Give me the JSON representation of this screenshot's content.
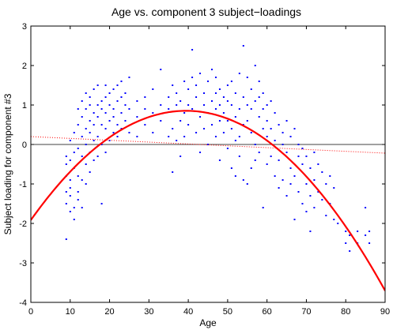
{
  "chart_data": {
    "type": "scatter",
    "title": "Age vs. component 3 subject−loadings",
    "xlabel": "Age",
    "ylabel": "Subject loading for component #3",
    "xlim": [
      0,
      90
    ],
    "ylim": [
      -4,
      3
    ],
    "xticks": [
      "0",
      "10",
      "20",
      "30",
      "40",
      "50",
      "60",
      "70",
      "80",
      "90"
    ],
    "yticks": [
      "-4",
      "-3",
      "-2",
      "-1",
      "0",
      "1",
      "2",
      "3"
    ],
    "grid": false,
    "legend": "none",
    "colors": {
      "points": "#0000ff",
      "quadratic_fit": "#ff0000",
      "linear_fit": "#ff0000",
      "zero_line": "#000000"
    },
    "zero_line": 0,
    "quadratic_fit": {
      "x": [
        0,
        10,
        20,
        30,
        40,
        50,
        60,
        70,
        80,
        90
      ],
      "y": [
        -2.0,
        -0.7,
        0.25,
        0.8,
        0.93,
        0.65,
        0.0,
        -0.95,
        -2.15,
        -3.55
      ]
    },
    "linear_fit": {
      "x": [
        0,
        90
      ],
      "y": [
        0.2,
        -0.22
      ]
    },
    "points": [
      [
        9,
        -2.4
      ],
      [
        9,
        -1.2
      ],
      [
        9,
        -0.8
      ],
      [
        9,
        -0.5
      ],
      [
        9,
        -0.3
      ],
      [
        9,
        -1.5
      ],
      [
        10,
        -0.9
      ],
      [
        10,
        -1.3
      ],
      [
        10,
        -1.7
      ],
      [
        10,
        -0.4
      ],
      [
        10,
        0.1
      ],
      [
        10,
        -1.1
      ],
      [
        11,
        -0.6
      ],
      [
        11,
        -1.6
      ],
      [
        11,
        -0.2
      ],
      [
        11,
        -1.9
      ],
      [
        11,
        0.3
      ],
      [
        12,
        -0.1
      ],
      [
        12,
        -1.4
      ],
      [
        12,
        0.9
      ],
      [
        12,
        -0.8
      ],
      [
        12,
        -1.2
      ],
      [
        12,
        0.5
      ],
      [
        13,
        0.2
      ],
      [
        13,
        -0.9
      ],
      [
        13,
        1.1
      ],
      [
        13,
        -0.3
      ],
      [
        13,
        -1.6
      ],
      [
        13,
        0.7
      ],
      [
        14,
        0.4
      ],
      [
        14,
        -0.5
      ],
      [
        14,
        1.3
      ],
      [
        14,
        0.0
      ],
      [
        14,
        -1.0
      ],
      [
        14,
        0.9
      ],
      [
        15,
        0.6
      ],
      [
        15,
        -0.2
      ],
      [
        15,
        1.2
      ],
      [
        15,
        0.3
      ],
      [
        15,
        -0.7
      ],
      [
        15,
        1.0
      ],
      [
        16,
        0.8
      ],
      [
        16,
        0.1
      ],
      [
        16,
        -0.4
      ],
      [
        16,
        1.4
      ],
      [
        16,
        0.5
      ],
      [
        17,
        1.0
      ],
      [
        17,
        0.2
      ],
      [
        17,
        -0.3
      ],
      [
        17,
        0.7
      ],
      [
        17,
        1.5
      ],
      [
        18,
        0.5
      ],
      [
        18,
        -1.5
      ],
      [
        18,
        1.1
      ],
      [
        18,
        0.0
      ],
      [
        18,
        0.9
      ],
      [
        19,
        1.2
      ],
      [
        19,
        0.4
      ],
      [
        19,
        -0.2
      ],
      [
        19,
        1.5
      ],
      [
        19,
        0.8
      ],
      [
        20,
        0.6
      ],
      [
        20,
        1.3
      ],
      [
        20,
        0.1
      ],
      [
        20,
        1.0
      ],
      [
        21,
        0.9
      ],
      [
        21,
        1.4
      ],
      [
        21,
        0.3
      ],
      [
        21,
        0.7
      ],
      [
        22,
        1.1
      ],
      [
        22,
        0.5
      ],
      [
        22,
        1.5
      ],
      [
        22,
        0.2
      ],
      [
        23,
        0.8
      ],
      [
        23,
        1.2
      ],
      [
        23,
        0.4
      ],
      [
        23,
        1.6
      ],
      [
        24,
        0.6
      ],
      [
        24,
        1.0
      ],
      [
        24,
        1.3
      ],
      [
        25,
        0.3
      ],
      [
        25,
        1.7
      ],
      [
        25,
        0.9
      ],
      [
        27,
        0.7
      ],
      [
        27,
        1.1
      ],
      [
        27,
        0.2
      ],
      [
        29,
        1.2
      ],
      [
        29,
        0.5
      ],
      [
        29,
        0.9
      ],
      [
        31,
        1.4
      ],
      [
        31,
        0.8
      ],
      [
        31,
        0.3
      ],
      [
        33,
        1.9
      ],
      [
        33,
        1.0
      ],
      [
        33,
        0.6
      ],
      [
        35,
        0.2
      ],
      [
        35,
        1.2
      ],
      [
        35,
        0.9
      ],
      [
        36,
        1.5
      ],
      [
        36,
        0.4
      ],
      [
        36,
        -0.7
      ],
      [
        37,
        1.0
      ],
      [
        37,
        0.1
      ],
      [
        37,
        1.3
      ],
      [
        38,
        1.1
      ],
      [
        38,
        -0.3
      ],
      [
        38,
        0.6
      ],
      [
        39,
        1.6
      ],
      [
        39,
        0.8
      ],
      [
        39,
        0.2
      ],
      [
        40,
        1.4
      ],
      [
        40,
        0.5
      ],
      [
        40,
        1.0
      ],
      [
        41,
        2.4
      ],
      [
        41,
        1.7
      ],
      [
        41,
        0.9
      ],
      [
        42,
        1.2
      ],
      [
        42,
        0.3
      ],
      [
        42,
        1.5
      ],
      [
        43,
        1.8
      ],
      [
        43,
        -0.2
      ],
      [
        43,
        0.7
      ],
      [
        44,
        1.0
      ],
      [
        44,
        0.4
      ],
      [
        44,
        1.3
      ],
      [
        45,
        1.6
      ],
      [
        45,
        0.8
      ],
      [
        45,
        0.0
      ],
      [
        46,
        1.9
      ],
      [
        46,
        1.1
      ],
      [
        46,
        0.5
      ],
      [
        47,
        1.3
      ],
      [
        47,
        0.2
      ],
      [
        47,
        0.9
      ],
      [
        47,
        1.7
      ],
      [
        48,
        1.0
      ],
      [
        48,
        -0.4
      ],
      [
        48,
        0.6
      ],
      [
        48,
        1.4
      ],
      [
        49,
        1.2
      ],
      [
        49,
        0.3
      ],
      [
        49,
        0.8
      ],
      [
        50,
        1.5
      ],
      [
        50,
        0.6
      ],
      [
        50,
        -0.1
      ],
      [
        50,
        1.1
      ],
      [
        51,
        1.0
      ],
      [
        51,
        0.4
      ],
      [
        51,
        -0.6
      ],
      [
        51,
        1.6
      ],
      [
        52,
        1.3
      ],
      [
        52,
        0.7
      ],
      [
        52,
        0.1
      ],
      [
        52,
        -0.8
      ],
      [
        53,
        1.8
      ],
      [
        53,
        0.9
      ],
      [
        53,
        0.2
      ],
      [
        53,
        -0.3
      ],
      [
        54,
        2.5
      ],
      [
        54,
        1.2
      ],
      [
        54,
        0.5
      ],
      [
        54,
        -0.9
      ],
      [
        55,
        1.7
      ],
      [
        55,
        0.6
      ],
      [
        55,
        -1.0
      ],
      [
        55,
        1.0
      ],
      [
        56,
        1.4
      ],
      [
        56,
        0.3
      ],
      [
        56,
        -0.6
      ],
      [
        56,
        0.9
      ],
      [
        57,
        2.0
      ],
      [
        57,
        1.1
      ],
      [
        57,
        0.0
      ],
      [
        57,
        -0.4
      ],
      [
        58,
        1.6
      ],
      [
        58,
        0.7
      ],
      [
        58,
        -0.2
      ],
      [
        58,
        1.2
      ],
      [
        59,
        1.3
      ],
      [
        59,
        0.4
      ],
      [
        59,
        -1.6
      ],
      [
        59,
        0.9
      ],
      [
        60,
        1.0
      ],
      [
        60,
        0.2
      ],
      [
        60,
        -0.5
      ],
      [
        60,
        0.6
      ],
      [
        61,
        1.1
      ],
      [
        61,
        -0.3
      ],
      [
        61,
        0.4
      ],
      [
        62,
        0.8
      ],
      [
        62,
        -0.8
      ],
      [
        62,
        0.1
      ],
      [
        63,
        0.5
      ],
      [
        63,
        -0.4
      ],
      [
        63,
        -1.1
      ],
      [
        64,
        0.3
      ],
      [
        64,
        -0.9
      ],
      [
        64,
        0.0
      ],
      [
        65,
        0.6
      ],
      [
        65,
        -0.2
      ],
      [
        65,
        -1.3
      ],
      [
        66,
        0.2
      ],
      [
        66,
        -0.6
      ],
      [
        66,
        -1.0
      ],
      [
        67,
        0.4
      ],
      [
        67,
        -0.8
      ],
      [
        67,
        -1.9
      ],
      [
        68,
        -0.3
      ],
      [
        68,
        -1.2
      ],
      [
        68,
        0.0
      ],
      [
        69,
        -0.5
      ],
      [
        69,
        -1.5
      ],
      [
        69,
        -0.1
      ],
      [
        70,
        -1.0
      ],
      [
        70,
        -0.3
      ],
      [
        70,
        -1.7
      ],
      [
        71,
        -0.6
      ],
      [
        71,
        -1.3
      ],
      [
        71,
        -2.2
      ],
      [
        72,
        -0.9
      ],
      [
        72,
        -0.2
      ],
      [
        72,
        -1.6
      ],
      [
        73,
        -1.2
      ],
      [
        73,
        -0.5
      ],
      [
        74,
        -1.4
      ],
      [
        74,
        -0.7
      ],
      [
        75,
        -1.0
      ],
      [
        75,
        -1.8
      ],
      [
        76,
        -1.5
      ],
      [
        76,
        -0.8
      ],
      [
        77,
        -1.9
      ],
      [
        77,
        -1.1
      ],
      [
        78,
        -2.0
      ],
      [
        80,
        -2.5
      ],
      [
        80,
        -2.2
      ],
      [
        81,
        -2.7
      ],
      [
        81,
        -2.3
      ],
      [
        83,
        -2.5
      ],
      [
        83,
        -2.2
      ],
      [
        85,
        -2.3
      ],
      [
        85,
        -1.6
      ],
      [
        86,
        -2.5
      ],
      [
        86,
        -2.2
      ]
    ]
  }
}
